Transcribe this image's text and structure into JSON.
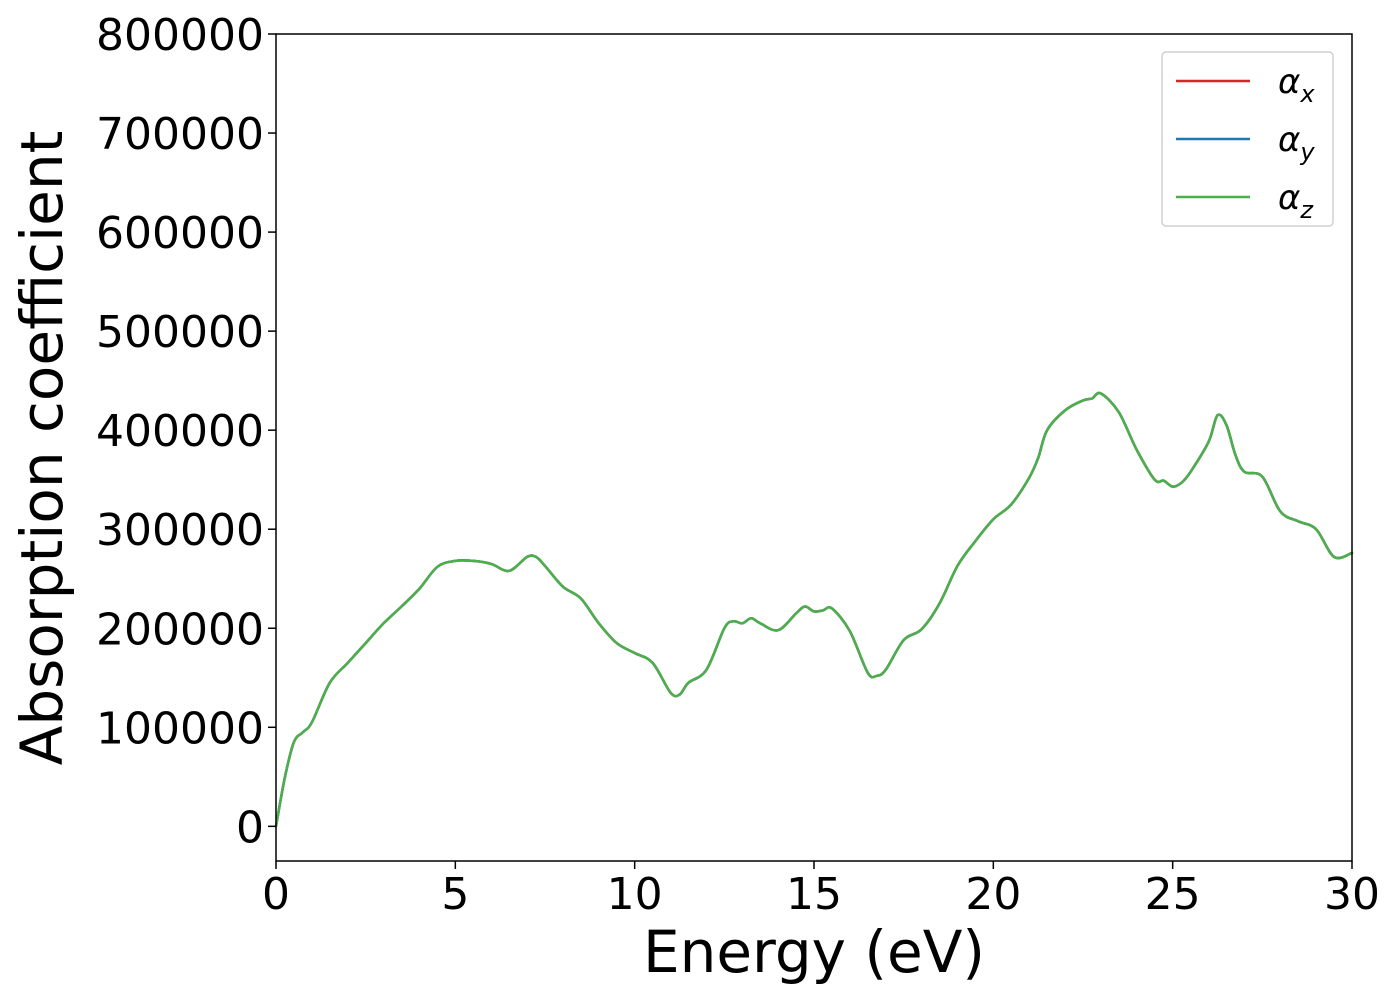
{
  "chart_data": {
    "type": "line",
    "title": "",
    "xlabel": "Energy (eV)",
    "ylabel": "Absorption coefficient",
    "xlim": [
      0,
      30
    ],
    "ylim": [
      -35000,
      800000
    ],
    "x_ticks": [
      0,
      5,
      10,
      15,
      20,
      25,
      30
    ],
    "y_ticks": [
      0,
      100000,
      200000,
      300000,
      400000,
      500000,
      600000,
      700000,
      800000
    ],
    "grid": false,
    "legend_position": "top-right",
    "series": [
      {
        "name": "α",
        "subscript": "x",
        "color": "#d62728",
        "x": [
          0,
          0.25,
          0.5,
          0.75,
          1.0,
          1.5,
          2.0,
          2.5,
          3.0,
          3.5,
          4.0,
          4.5,
          5.0,
          5.5,
          6.0,
          6.5,
          7.0,
          7.25,
          7.5,
          8.0,
          8.5,
          9.0,
          9.5,
          10.0,
          10.5,
          11.0,
          11.25,
          11.5,
          12.0,
          12.5,
          12.75,
          13.0,
          13.25,
          13.5,
          14.0,
          14.5,
          14.75,
          15.0,
          15.25,
          15.5,
          16.0,
          16.5,
          16.75,
          17.0,
          17.5,
          18.0,
          18.5,
          19.0,
          19.5,
          20.0,
          20.5,
          21.0,
          21.25,
          21.5,
          22.0,
          22.5,
          22.75,
          23.0,
          23.5,
          24.0,
          24.5,
          24.75,
          25.0,
          25.25,
          25.5,
          26.0,
          26.25,
          26.5,
          26.75,
          27.0,
          27.5,
          28.0,
          28.5,
          29.0,
          29.5,
          30.0
        ],
        "values": [
          0,
          50000,
          85000,
          95000,
          105000,
          145000,
          165000,
          185000,
          205000,
          222000,
          240000,
          262000,
          268000,
          268000,
          265000,
          258000,
          272000,
          272000,
          263000,
          242000,
          230000,
          205000,
          185000,
          175000,
          165000,
          135000,
          133000,
          145000,
          158000,
          200000,
          207000,
          205000,
          210000,
          205000,
          198000,
          215000,
          222000,
          217000,
          218000,
          220000,
          197000,
          155000,
          152000,
          158000,
          188000,
          199000,
          225000,
          263000,
          288000,
          310000,
          325000,
          352000,
          372000,
          400000,
          420000,
          430000,
          432000,
          437000,
          418000,
          380000,
          350000,
          349000,
          343000,
          347000,
          358000,
          388000,
          415000,
          405000,
          375000,
          358000,
          353000,
          318000,
          308000,
          300000,
          272000,
          276000
        ]
      },
      {
        "name": "α",
        "subscript": "y",
        "color": "#1f77b4",
        "x": [
          0,
          0.25,
          0.5,
          0.75,
          1.0,
          1.5,
          2.0,
          2.5,
          3.0,
          3.5,
          4.0,
          4.5,
          5.0,
          5.5,
          6.0,
          6.5,
          7.0,
          7.25,
          7.5,
          8.0,
          8.5,
          9.0,
          9.5,
          10.0,
          10.5,
          11.0,
          11.25,
          11.5,
          12.0,
          12.5,
          12.75,
          13.0,
          13.25,
          13.5,
          14.0,
          14.5,
          14.75,
          15.0,
          15.25,
          15.5,
          16.0,
          16.5,
          16.75,
          17.0,
          17.5,
          18.0,
          18.5,
          19.0,
          19.5,
          20.0,
          20.5,
          21.0,
          21.25,
          21.5,
          22.0,
          22.5,
          22.75,
          23.0,
          23.5,
          24.0,
          24.5,
          24.75,
          25.0,
          25.25,
          25.5,
          26.0,
          26.25,
          26.5,
          26.75,
          27.0,
          27.5,
          28.0,
          28.5,
          29.0,
          29.5,
          30.0
        ],
        "values": [
          0,
          50000,
          85000,
          95000,
          105000,
          145000,
          165000,
          185000,
          205000,
          222000,
          240000,
          262000,
          268000,
          268000,
          265000,
          258000,
          272000,
          272000,
          263000,
          242000,
          230000,
          205000,
          185000,
          175000,
          165000,
          135000,
          133000,
          145000,
          158000,
          200000,
          207000,
          205000,
          210000,
          205000,
          198000,
          215000,
          222000,
          217000,
          218000,
          220000,
          197000,
          155000,
          152000,
          158000,
          188000,
          199000,
          225000,
          263000,
          288000,
          310000,
          325000,
          352000,
          372000,
          400000,
          420000,
          430000,
          432000,
          437000,
          418000,
          380000,
          350000,
          349000,
          343000,
          347000,
          358000,
          388000,
          415000,
          405000,
          375000,
          358000,
          353000,
          318000,
          308000,
          300000,
          272000,
          276000
        ]
      },
      {
        "name": "α",
        "subscript": "z",
        "color": "#4daf4a",
        "x": [
          0,
          0.25,
          0.5,
          0.75,
          1.0,
          1.5,
          2.0,
          2.5,
          3.0,
          3.5,
          4.0,
          4.5,
          5.0,
          5.5,
          6.0,
          6.5,
          7.0,
          7.25,
          7.5,
          8.0,
          8.5,
          9.0,
          9.5,
          10.0,
          10.5,
          11.0,
          11.25,
          11.5,
          12.0,
          12.5,
          12.75,
          13.0,
          13.25,
          13.5,
          14.0,
          14.5,
          14.75,
          15.0,
          15.25,
          15.5,
          16.0,
          16.5,
          16.75,
          17.0,
          17.5,
          18.0,
          18.5,
          19.0,
          19.5,
          20.0,
          20.5,
          21.0,
          21.25,
          21.5,
          22.0,
          22.5,
          22.75,
          23.0,
          23.5,
          24.0,
          24.5,
          24.75,
          25.0,
          25.25,
          25.5,
          26.0,
          26.25,
          26.5,
          26.75,
          27.0,
          27.5,
          28.0,
          28.5,
          29.0,
          29.5,
          30.0
        ],
        "values": [
          0,
          50000,
          85000,
          95000,
          105000,
          145000,
          165000,
          185000,
          205000,
          222000,
          240000,
          262000,
          268000,
          268000,
          265000,
          258000,
          272000,
          272000,
          263000,
          242000,
          230000,
          205000,
          185000,
          175000,
          165000,
          135000,
          133000,
          145000,
          158000,
          200000,
          207000,
          205000,
          210000,
          205000,
          198000,
          215000,
          222000,
          217000,
          218000,
          220000,
          197000,
          155000,
          152000,
          158000,
          188000,
          199000,
          225000,
          263000,
          288000,
          310000,
          325000,
          352000,
          372000,
          400000,
          420000,
          430000,
          432000,
          437000,
          418000,
          380000,
          350000,
          349000,
          343000,
          347000,
          358000,
          388000,
          415000,
          405000,
          375000,
          358000,
          353000,
          318000,
          308000,
          300000,
          272000,
          276000
        ]
      }
    ]
  }
}
